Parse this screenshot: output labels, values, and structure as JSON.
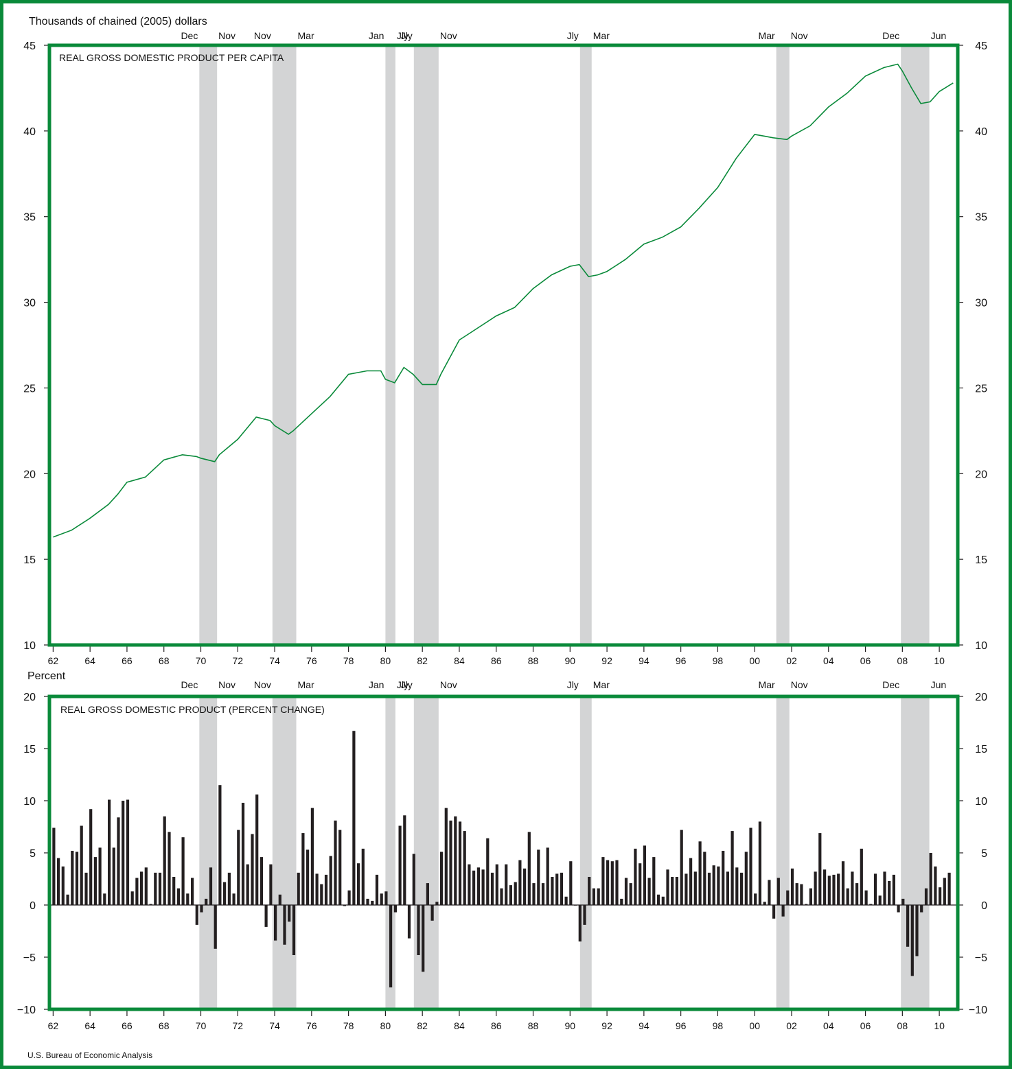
{
  "source_note": "U.S. Bureau of Economic Analysis",
  "colors": {
    "frame": "#0a8a3a",
    "plot_border": "#0a8a3a",
    "recession": "#d3d4d5",
    "line": "#0a8a3a",
    "bars": "#231f20"
  },
  "x_ticks": [
    "62",
    "64",
    "66",
    "68",
    "70",
    "72",
    "74",
    "76",
    "78",
    "80",
    "82",
    "84",
    "86",
    "88",
    "90",
    "92",
    "94",
    "96",
    "98",
    "00",
    "02",
    "04",
    "06",
    "08",
    "10"
  ],
  "chart_data": [
    {
      "type": "line",
      "title": "REAL GROSS DOMESTIC PRODUCT PER CAPITA",
      "ylabel": "Thousands of chained (2005) dollars",
      "ylim": [
        10,
        45
      ],
      "yticks": [
        "10",
        "15",
        "20",
        "25",
        "30",
        "35",
        "40",
        "45"
      ],
      "recessions": [
        {
          "start": 1969.92,
          "end": 1970.88,
          "start_label": "Dec",
          "end_label": "Nov"
        },
        {
          "start": 1973.88,
          "end": 1975.17,
          "start_label": "Nov",
          "end_label": "Mar"
        },
        {
          "start": 1980.0,
          "end": 1980.54,
          "start_label": "Jan",
          "end_label": "Jly"
        },
        {
          "start": 1981.54,
          "end": 1982.88,
          "start_label": "Jly",
          "end_label": "Nov"
        },
        {
          "start": 1990.54,
          "end": 1991.17,
          "start_label": "Jly",
          "end_label": "Mar"
        },
        {
          "start": 2001.17,
          "end": 2001.88,
          "start_label": "Mar",
          "end_label": "Nov"
        },
        {
          "start": 2007.92,
          "end": 2009.46,
          "start_label": "Dec",
          "end_label": "Jun"
        }
      ],
      "series": [
        {
          "x": [
            1962,
            1963,
            1964,
            1965,
            1965.5,
            1966,
            1967,
            1968,
            1969,
            1969.75,
            1970,
            1970.75,
            1971,
            1972,
            1973,
            1973.75,
            1974,
            1974.75,
            1975,
            1975.5,
            1976,
            1977,
            1978,
            1979,
            1979.75,
            1980,
            1980.5,
            1981,
            1981.5,
            1981.75,
            1982,
            1982.75,
            1983,
            1984,
            1985,
            1986,
            1987,
            1988,
            1989,
            1990,
            1990.5,
            1991,
            1991.5,
            1992,
            1993,
            1994,
            1995,
            1996,
            1997,
            1998,
            1999,
            2000,
            2000.5,
            2001,
            2001.75,
            2002,
            2003,
            2004,
            2005,
            2006,
            2007,
            2007.75,
            2008,
            2008.5,
            2009,
            2009.5,
            2010,
            2010.75
          ],
          "y": [
            16.3,
            16.7,
            17.4,
            18.2,
            18.8,
            19.5,
            19.8,
            20.8,
            21.1,
            21.0,
            20.9,
            20.7,
            21.1,
            22.0,
            23.3,
            23.1,
            22.8,
            22.3,
            22.5,
            23.0,
            23.5,
            24.5,
            25.8,
            26.0,
            26.0,
            25.5,
            25.3,
            26.2,
            25.8,
            25.5,
            25.2,
            25.2,
            25.8,
            27.8,
            28.5,
            29.2,
            29.7,
            30.8,
            31.6,
            32.1,
            32.2,
            31.5,
            31.6,
            31.8,
            32.5,
            33.4,
            33.8,
            34.4,
            35.5,
            36.7,
            38.4,
            39.8,
            39.7,
            39.6,
            39.5,
            39.7,
            40.3,
            41.4,
            42.2,
            43.2,
            43.7,
            43.9,
            43.5,
            42.5,
            41.6,
            41.7,
            42.3,
            42.8
          ]
        }
      ]
    },
    {
      "type": "bar",
      "title": "REAL GROSS DOMESTIC PRODUCT (PERCENT CHANGE)",
      "ylabel": "Percent",
      "ylim": [
        -10,
        20
      ],
      "yticks": [
        "−10",
        "−5",
        "0",
        "5",
        "10",
        "15",
        "20"
      ],
      "x_start": 1962.0,
      "x_step": 0.25,
      "values": [
        7.4,
        4.5,
        3.7,
        1.0,
        5.2,
        5.1,
        7.6,
        3.1,
        9.2,
        4.6,
        5.5,
        1.1,
        10.1,
        5.5,
        8.4,
        10.0,
        10.1,
        1.3,
        2.6,
        3.2,
        3.6,
        0.1,
        3.1,
        3.1,
        8.5,
        7.0,
        2.7,
        1.6,
        6.5,
        1.1,
        2.6,
        -1.9,
        -0.7,
        0.6,
        3.6,
        -4.2,
        11.5,
        2.2,
        3.1,
        1.1,
        7.2,
        9.8,
        3.9,
        6.8,
        10.6,
        4.6,
        -2.1,
        3.9,
        -3.4,
        1.0,
        -3.8,
        -1.6,
        -4.8,
        3.1,
        6.9,
        5.3,
        9.3,
        3.0,
        2.0,
        2.9,
        4.7,
        8.1,
        7.2,
        -0.1,
        1.4,
        16.7,
        4.0,
        5.4,
        0.6,
        0.4,
        2.9,
        1.1,
        1.3,
        -7.9,
        -0.7,
        7.6,
        8.6,
        -3.2,
        4.9,
        -4.8,
        -6.4,
        2.1,
        -1.5,
        0.3,
        5.1,
        9.3,
        8.1,
        8.5,
        8.0,
        7.1,
        3.9,
        3.3,
        3.6,
        3.4,
        6.4,
        3.1,
        3.9,
        1.6,
        3.9,
        1.9,
        2.2,
        4.3,
        3.5,
        7.0,
        2.1,
        5.3,
        2.1,
        5.5,
        2.7,
        3.0,
        3.1,
        0.8,
        4.2,
        0.0,
        -3.5,
        -1.9,
        2.7,
        1.6,
        1.6,
        4.6,
        4.3,
        4.2,
        4.3,
        0.6,
        2.6,
        2.1,
        5.4,
        4.0,
        5.7,
        2.6,
        4.6,
        1.0,
        0.8,
        3.4,
        2.7,
        2.7,
        7.2,
        3.0,
        4.5,
        3.2,
        6.1,
        5.1,
        3.1,
        3.8,
        3.7,
        5.2,
        3.2,
        7.1,
        3.6,
        3.1,
        5.1,
        7.4,
        1.1,
        8.0,
        0.3,
        2.4,
        -1.3,
        2.6,
        -1.1,
        1.4,
        3.5,
        2.1,
        2.0,
        0.1,
        1.6,
        3.2,
        6.9,
        3.4,
        2.8,
        2.9,
        3.0,
        4.2,
        1.6,
        3.2,
        2.1,
        5.4,
        1.4,
        0.1,
        3.0,
        0.9,
        3.2,
        2.3,
        2.9,
        -0.7,
        0.6,
        -4.0,
        -6.8,
        -4.9,
        -0.7,
        1.6,
        5.0,
        3.7,
        1.7,
        2.6,
        3.1
      ]
    }
  ]
}
